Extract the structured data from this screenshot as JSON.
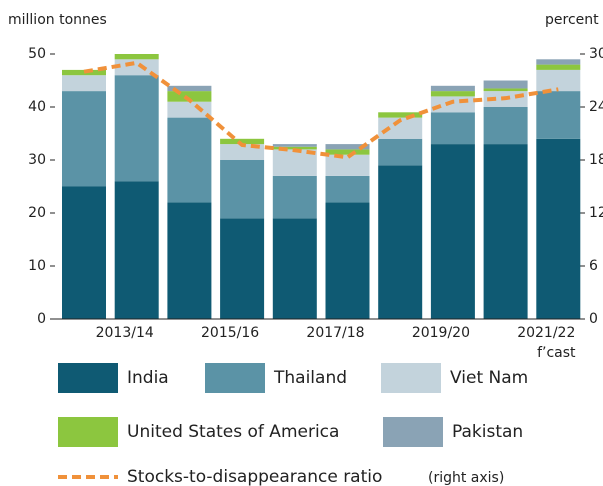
{
  "chart_data": {
    "type": "stacked_bar_line",
    "y_label": "million tonnes",
    "y2_label": "percent",
    "categories": [
      null,
      "2013/14",
      null,
      "2015/16",
      null,
      "2017/18",
      null,
      "2019/20",
      null,
      "2021/22"
    ],
    "annotations": [
      "f’cast"
    ],
    "ylim": [
      0,
      50
    ],
    "yticks": [
      0,
      10,
      20,
      30,
      40,
      50
    ],
    "y2lim": [
      0,
      30
    ],
    "y2ticks": [
      0,
      6,
      12,
      18,
      24,
      30
    ],
    "series": [
      {
        "name": "India",
        "color": "#0f5a73",
        "values": [
          25,
          26,
          22,
          19,
          19,
          22,
          29,
          33,
          33,
          34
        ]
      },
      {
        "name": "Thailand",
        "color": "#5b93a6",
        "values": [
          18,
          20,
          16,
          11,
          8,
          5,
          5,
          6,
          7,
          9
        ]
      },
      {
        "name": "Viet Nam",
        "color": "#c3d3dc",
        "values": [
          3,
          3,
          3,
          3,
          5,
          4,
          4,
          3,
          3,
          4
        ]
      },
      {
        "name": "United States of America",
        "color": "#8cc63f",
        "values": [
          1,
          1,
          2,
          1,
          0.5,
          1,
          1,
          1,
          0.5,
          1
        ]
      },
      {
        "name": "Pakistan",
        "color": "#8aa3b5",
        "values": [
          0,
          0,
          1,
          0,
          0.5,
          1,
          0,
          1,
          1.5,
          1
        ]
      },
      {
        "name": "Stocks-to-disappearance ratio",
        "color": "#f0913a",
        "axis": "y2",
        "dashed": true,
        "values": [
          28,
          29,
          24.8,
          19.7,
          19.1,
          18.3,
          22.5,
          24.6,
          25,
          26
        ]
      }
    ],
    "legend_note": "(right axis)"
  }
}
